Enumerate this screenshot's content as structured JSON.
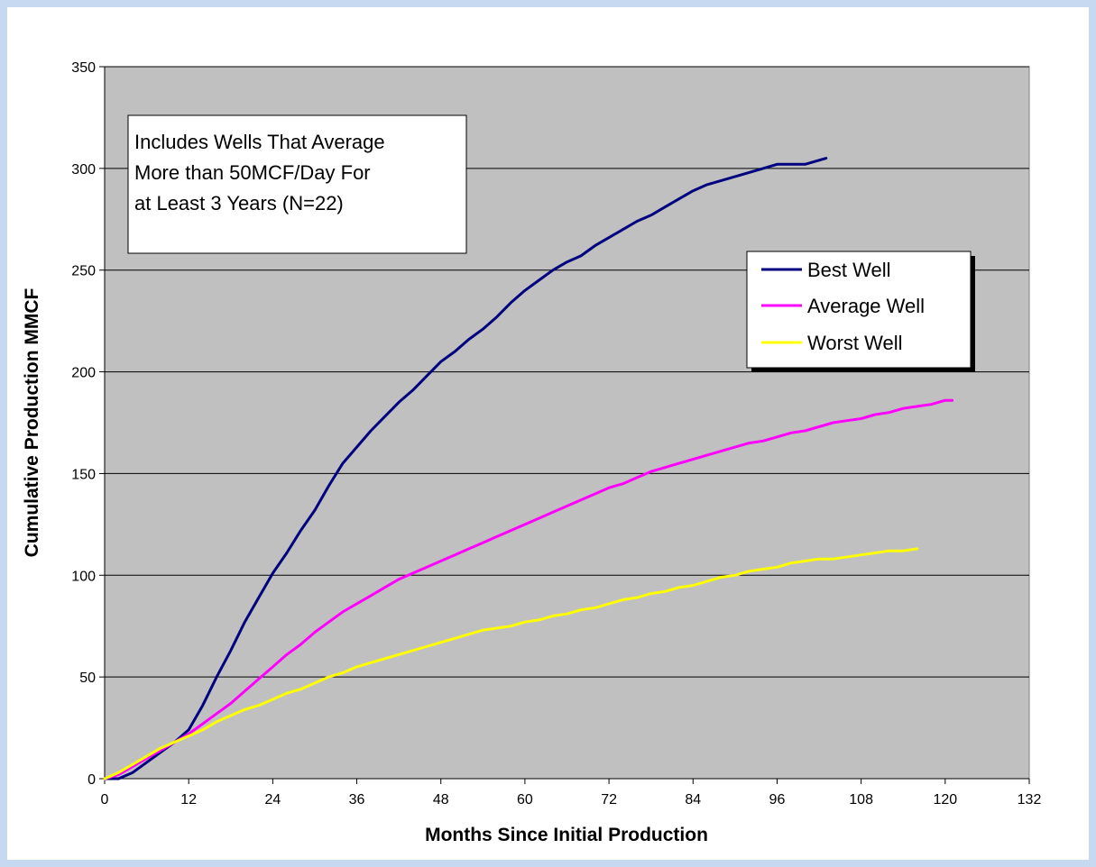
{
  "colors": {
    "page_border": "#c6d9f0",
    "background": "#ffffff",
    "plot_area": "#c0c0c0",
    "grid": "#000000",
    "best": "#000080",
    "average": "#ff00ff",
    "worst": "#ffff00"
  },
  "chart_data": {
    "type": "line",
    "title": "",
    "xlabel": "Months Since Initial Production",
    "ylabel": "Cumulative Production MMCF",
    "xlim": [
      0,
      132
    ],
    "ylim": [
      0,
      350
    ],
    "x_ticks": [
      0,
      12,
      24,
      36,
      48,
      60,
      72,
      84,
      96,
      108,
      120,
      132
    ],
    "y_ticks": [
      0,
      50,
      100,
      150,
      200,
      250,
      300,
      350
    ],
    "grid": "horizontal",
    "legend_position": "right",
    "annotation": [
      "Includes Wells That Average",
      "More than 50MCF/Day For",
      "at Least 3 Years  (N=22)"
    ],
    "series": [
      {
        "name": "Best Well",
        "color": "#000080",
        "x": [
          0,
          2,
          4,
          6,
          8,
          10,
          12,
          14,
          16,
          18,
          20,
          22,
          24,
          26,
          28,
          30,
          32,
          34,
          36,
          38,
          40,
          42,
          44,
          46,
          48,
          50,
          52,
          54,
          56,
          58,
          60,
          62,
          64,
          66,
          68,
          70,
          72,
          74,
          76,
          78,
          80,
          82,
          84,
          86,
          88,
          90,
          92,
          94,
          96,
          98,
          100,
          102,
          103
        ],
        "y": [
          0,
          0,
          3,
          8,
          13,
          18,
          24,
          36,
          50,
          63,
          77,
          89,
          101,
          111,
          122,
          132,
          144,
          155,
          163,
          171,
          178,
          185,
          191,
          198,
          205,
          210,
          216,
          221,
          227,
          234,
          240,
          245,
          250,
          254,
          257,
          262,
          266,
          270,
          274,
          277,
          281,
          285,
          289,
          292,
          294,
          296,
          298,
          300,
          302,
          302,
          302,
          304,
          305
        ]
      },
      {
        "name": "Average Well",
        "color": "#ff00ff",
        "x": [
          0,
          2,
          4,
          6,
          8,
          10,
          12,
          14,
          16,
          18,
          20,
          22,
          24,
          26,
          28,
          30,
          32,
          34,
          36,
          38,
          40,
          42,
          44,
          46,
          48,
          50,
          52,
          54,
          56,
          58,
          60,
          62,
          64,
          66,
          68,
          70,
          72,
          74,
          76,
          78,
          80,
          82,
          84,
          86,
          88,
          90,
          92,
          94,
          96,
          98,
          100,
          102,
          104,
          106,
          108,
          110,
          112,
          114,
          116,
          118,
          120,
          121
        ],
        "y": [
          0,
          2,
          6,
          10,
          14,
          18,
          22,
          27,
          32,
          37,
          43,
          49,
          55,
          61,
          66,
          72,
          77,
          82,
          86,
          90,
          94,
          98,
          101,
          104,
          107,
          110,
          113,
          116,
          119,
          122,
          125,
          128,
          131,
          134,
          137,
          140,
          143,
          145,
          148,
          151,
          153,
          155,
          157,
          159,
          161,
          163,
          165,
          166,
          168,
          170,
          171,
          173,
          175,
          176,
          177,
          179,
          180,
          182,
          183,
          184,
          186,
          186
        ]
      },
      {
        "name": "Worst Well",
        "color": "#ffff00",
        "x": [
          0,
          2,
          4,
          6,
          8,
          10,
          12,
          14,
          16,
          18,
          20,
          22,
          24,
          26,
          28,
          30,
          32,
          34,
          36,
          38,
          40,
          42,
          44,
          46,
          48,
          50,
          52,
          54,
          56,
          58,
          60,
          62,
          64,
          66,
          68,
          70,
          72,
          74,
          76,
          78,
          80,
          82,
          84,
          86,
          88,
          90,
          92,
          94,
          96,
          98,
          100,
          102,
          104,
          106,
          108,
          110,
          112,
          114,
          116
        ],
        "y": [
          0,
          3,
          7,
          11,
          15,
          18,
          21,
          24,
          28,
          31,
          34,
          36,
          39,
          42,
          44,
          47,
          50,
          52,
          55,
          57,
          59,
          61,
          63,
          65,
          67,
          69,
          71,
          73,
          74,
          75,
          77,
          78,
          80,
          81,
          83,
          84,
          86,
          88,
          89,
          91,
          92,
          94,
          95,
          97,
          99,
          100,
          102,
          103,
          104,
          106,
          107,
          108,
          108,
          109,
          110,
          111,
          112,
          112,
          113
        ]
      }
    ]
  }
}
